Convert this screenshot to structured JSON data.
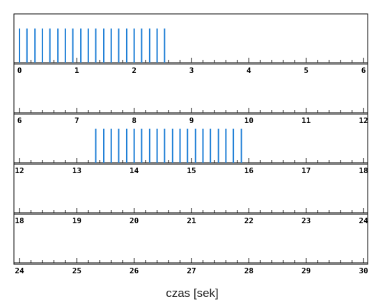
{
  "chart_data": {
    "type": "raster",
    "xlabel": "czas [sek]",
    "seconds_per_row": 6,
    "event_color": "#1f7fd6",
    "rows": [
      {
        "xlim": [
          0,
          6
        ],
        "tick_labels": [
          "0",
          "1",
          "2",
          "3",
          "4",
          "5",
          "6"
        ],
        "events": [
          0.0,
          0.13,
          0.27,
          0.4,
          0.53,
          0.67,
          0.8,
          0.93,
          1.07,
          1.2,
          1.33,
          1.47,
          1.6,
          1.73,
          1.87,
          2.0,
          2.13,
          2.27,
          2.4,
          2.53
        ]
      },
      {
        "xlim": [
          6,
          12
        ],
        "tick_labels": [
          "6",
          "7",
          "8",
          "9",
          "10",
          "11",
          "12"
        ],
        "events": []
      },
      {
        "xlim": [
          12,
          18
        ],
        "tick_labels": [
          "12",
          "13",
          "14",
          "15",
          "16",
          "17",
          "18"
        ],
        "events": [
          13.33,
          13.47,
          13.6,
          13.73,
          13.87,
          14.0,
          14.13,
          14.27,
          14.4,
          14.53,
          14.67,
          14.8,
          14.93,
          15.07,
          15.2,
          15.33,
          15.47,
          15.6,
          15.73,
          15.87
        ]
      },
      {
        "xlim": [
          18,
          24
        ],
        "tick_labels": [
          "18",
          "19",
          "20",
          "21",
          "22",
          "23",
          "24"
        ],
        "events": []
      },
      {
        "xlim": [
          24,
          30
        ],
        "tick_labels": [
          "24",
          "25",
          "26",
          "27",
          "28",
          "29",
          "30"
        ],
        "events": []
      }
    ]
  }
}
